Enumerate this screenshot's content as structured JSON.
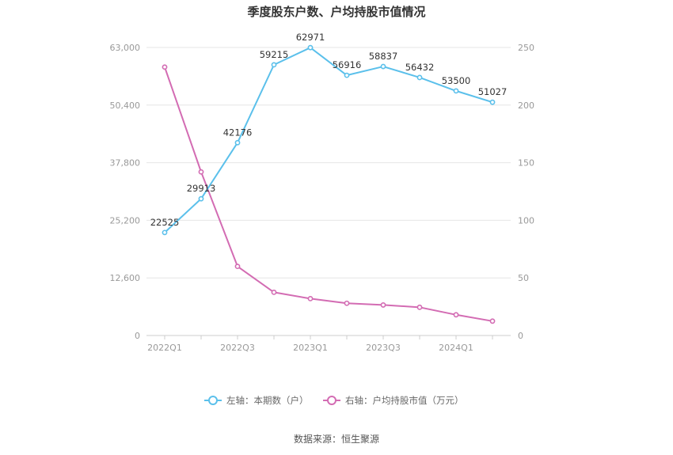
{
  "chart_data": {
    "type": "line",
    "title": "季度股东户数、户均持股市值情况",
    "x": [
      "2022Q1",
      "2022Q2",
      "2022Q3",
      "2022Q4",
      "2023Q1",
      "2023Q2",
      "2023Q3",
      "2023Q4",
      "2024Q1",
      "2024Q2"
    ],
    "x_tick_labels": [
      "2022Q1",
      "2022Q3",
      "2023Q1",
      "2023Q3",
      "2024Q1"
    ],
    "y_left": {
      "ylim": [
        0,
        63000
      ],
      "ticks": [
        "0",
        "12,600",
        "25,200",
        "37,800",
        "50,400",
        "63,000"
      ]
    },
    "y_right": {
      "ylim": [
        0,
        250
      ],
      "ticks": [
        "0",
        "50",
        "100",
        "150",
        "200",
        "250"
      ]
    },
    "grid": true,
    "legend_position": "bottom",
    "series": [
      {
        "name": "左轴：本期数（户）",
        "axis": "left",
        "color": "#5bc0eb",
        "values": [
          22525,
          29913,
          42176,
          59215,
          62971,
          56916,
          58837,
          56432,
          53500,
          51027
        ],
        "data_labels": [
          "22525",
          "29913",
          "42176",
          "59215",
          "62971",
          "56916",
          "58837",
          "56432",
          "53500",
          "51027"
        ]
      },
      {
        "name": "右轴：户均持股市值（万元）",
        "axis": "right",
        "color": "#d36cb3",
        "values": [
          233,
          142,
          60,
          37.5,
          32,
          28,
          26.5,
          24.5,
          18,
          12.5
        ]
      }
    ],
    "source": "数据来源：恒生聚源"
  }
}
